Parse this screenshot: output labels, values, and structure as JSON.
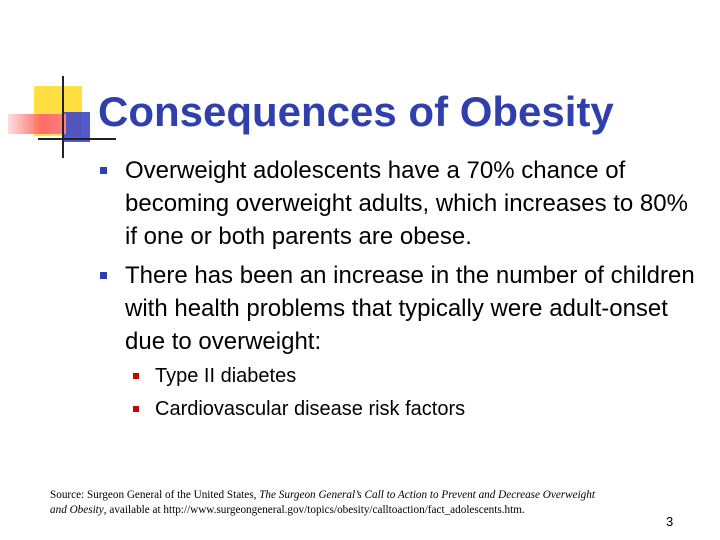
{
  "slide": {
    "title": "Consequences of Obesity",
    "bullets": [
      {
        "text": "Overweight adolescents have a 70% chance of becoming overweight adults, which increases to 80% if one or both parents are obese.",
        "sub": []
      },
      {
        "text": "There has been an increase in the number of children with health problems that typically were adult-onset due to overweight:",
        "sub": [
          "Type II diabetes",
          "Cardiovascular disease risk factors"
        ]
      }
    ],
    "source": {
      "prefix": "Source: Surgeon General of the United States, ",
      "italic_line1": "The Surgeon General’s Call to Action to Prevent  and Decrease Overweight",
      "italic_line2": "and Obesity",
      "suffix": ", available at http://www.surgeongeneral.gov/topics/obesity/calltoaction/fact_adolescents.htm."
    },
    "page_number": "3"
  },
  "colors": {
    "title": "#2f3fae",
    "bullet_mark": "#2f3fae",
    "sub_bullet_mark": "#cc0000",
    "deco_yellow": "#ffe040",
    "deco_blue": "#3f47c8",
    "deco_red": "#ff6b6b"
  }
}
